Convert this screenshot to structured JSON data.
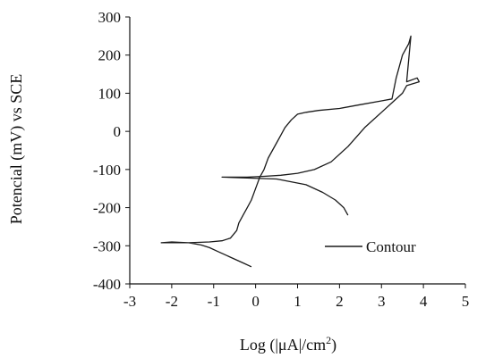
{
  "chart_data": {
    "type": "line",
    "xlabel_main": "Log (|μA|/cm",
    "xlabel_sup": "2",
    "xlabel_tail": ")",
    "ylabel": "Potencial (mV) vs SCE",
    "xlim": [
      -3,
      5
    ],
    "ylim": [
      -400,
      300
    ],
    "x_ticks": [
      "-3",
      "-2",
      "-1",
      "0",
      "1",
      "2",
      "3",
      "4",
      "5"
    ],
    "y_ticks": [
      "300",
      "200",
      "100",
      "0",
      "-100",
      "-200",
      "-300",
      "-400"
    ],
    "legend": {
      "position": "bottom-right",
      "label": "Contour"
    },
    "series": [
      {
        "name": "Contour",
        "color": "#1a1a1a",
        "x": [
          -0.1,
          -0.3,
          -0.6,
          -0.9,
          -1.1,
          -1.3,
          -1.6,
          -2.0,
          -2.25,
          -1.6,
          -1.1,
          -0.8,
          -0.6,
          -0.45,
          -0.4,
          -0.3,
          -0.2,
          -0.1,
          0.0,
          0.1,
          0.2,
          0.3,
          0.4,
          0.5,
          0.6,
          0.7,
          0.85,
          1.0,
          1.2,
          1.5,
          2.0,
          2.5,
          3.0,
          3.25,
          3.35,
          3.5,
          3.65,
          3.7,
          3.6,
          3.85,
          3.9,
          3.6,
          3.5,
          3.3,
          3.0,
          2.6,
          2.2,
          1.8,
          1.4,
          1.0,
          0.6,
          0.2,
          -0.2,
          -0.5,
          -0.8,
          0.5,
          1.2,
          1.6,
          1.9,
          2.1,
          2.2
        ],
        "y": [
          -355,
          -345,
          -330,
          -315,
          -305,
          -298,
          -292,
          -290,
          -292,
          -292,
          -290,
          -287,
          -280,
          -260,
          -240,
          -220,
          -200,
          -180,
          -150,
          -120,
          -100,
          -70,
          -50,
          -30,
          -10,
          10,
          30,
          45,
          50,
          55,
          60,
          70,
          80,
          85,
          140,
          200,
          230,
          250,
          130,
          140,
          130,
          120,
          100,
          80,
          50,
          10,
          -40,
          -80,
          -100,
          -110,
          -115,
          -118,
          -120,
          -120,
          -120,
          -125,
          -140,
          -160,
          -180,
          -200,
          -220
        ]
      }
    ]
  }
}
